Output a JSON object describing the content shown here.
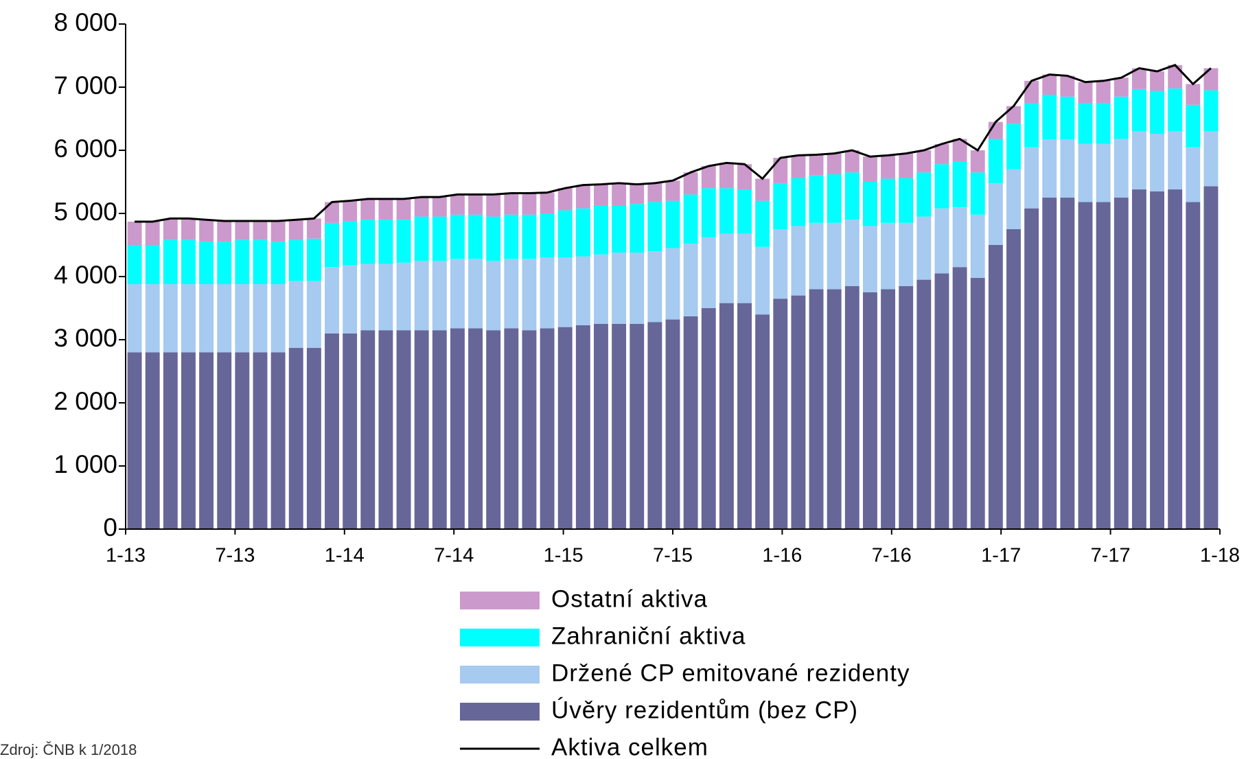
{
  "chart_data": {
    "type": "bar",
    "stacked": true,
    "categories": [
      "1-13",
      null,
      null,
      null,
      null,
      null,
      "7-13",
      null,
      null,
      null,
      null,
      null,
      "1-14",
      null,
      null,
      null,
      null,
      null,
      "7-14",
      null,
      null,
      null,
      null,
      null,
      "1-15",
      null,
      null,
      null,
      null,
      null,
      "7-15",
      null,
      null,
      null,
      null,
      null,
      "1-16",
      null,
      null,
      null,
      null,
      null,
      "7-16",
      null,
      null,
      null,
      null,
      null,
      "1-17",
      null,
      null,
      null,
      null,
      null,
      "7-17",
      null,
      null,
      null,
      null,
      null,
      "1-18"
    ],
    "series": [
      {
        "name": "Ostatní aktiva",
        "color": "#cc99cc",
        "values": [
          370,
          370,
          340,
          340,
          350,
          330,
          300,
          300,
          330,
          320,
          320,
          330,
          320,
          330,
          330,
          330,
          310,
          310,
          320,
          320,
          350,
          340,
          340,
          330,
          350,
          370,
          340,
          360,
          310,
          300,
          320,
          350,
          350,
          400,
          400,
          350,
          400,
          360,
          330,
          330,
          350,
          400,
          370,
          390,
          350,
          320,
          360,
          350,
          270,
          280,
          350,
          320,
          330,
          330,
          350,
          300,
          330,
          310,
          370,
          330,
          350
        ]
      },
      {
        "name": "Zahraniční aktiva",
        "color": "#00ffff",
        "values": [
          620,
          620,
          700,
          700,
          670,
          670,
          700,
          700,
          670,
          650,
          670,
          700,
          700,
          700,
          700,
          680,
          700,
          700,
          700,
          700,
          700,
          700,
          700,
          700,
          750,
          760,
          770,
          740,
          770,
          780,
          750,
          780,
          780,
          720,
          700,
          730,
          730,
          760,
          750,
          770,
          750,
          700,
          700,
          710,
          700,
          700,
          720,
          670,
          700,
          720,
          700,
          710,
          680,
          650,
          650,
          670,
          670,
          680,
          680,
          670,
          650
        ]
      },
      {
        "name": "Držené CP emitované rezidenty",
        "color": "#a6caf0",
        "values": [
          1080,
          1080,
          1080,
          1080,
          1080,
          1080,
          1080,
          1080,
          1080,
          1060,
          1060,
          1050,
          1080,
          1050,
          1050,
          1070,
          1100,
          1100,
          1100,
          1100,
          1100,
          1100,
          1130,
          1120,
          1100,
          1090,
          1100,
          1130,
          1130,
          1120,
          1130,
          1150,
          1120,
          1100,
          1100,
          1070,
          1100,
          1100,
          1050,
          1050,
          1050,
          1050,
          1050,
          1000,
          1000,
          1030,
          950,
          1000,
          980,
          950,
          970,
          920,
          920,
          920,
          920,
          930,
          920,
          910,
          920,
          870,
          870
        ]
      },
      {
        "name": "Úvěry rezidentům (bez CP)",
        "color": "#666699",
        "values": [
          2800,
          2800,
          2800,
          2800,
          2800,
          2800,
          2800,
          2800,
          2800,
          2870,
          2870,
          3100,
          3100,
          3150,
          3150,
          3150,
          3150,
          3150,
          3180,
          3180,
          3150,
          3180,
          3150,
          3180,
          3200,
          3230,
          3250,
          3250,
          3250,
          3280,
          3320,
          3370,
          3500,
          3580,
          3580,
          3400,
          3650,
          3700,
          3800,
          3800,
          3850,
          3750,
          3800,
          3850,
          3950,
          4050,
          4150,
          3980,
          4500,
          4750,
          5080,
          5250,
          5250,
          5180,
          5180,
          5250,
          5380,
          5350,
          5380,
          5180,
          5430
        ]
      },
      {
        "name": "Aktiva celkem",
        "color": "#000000",
        "type": "line",
        "values": [
          4870,
          4870,
          4920,
          4920,
          4900,
          4880,
          4880,
          4880,
          4880,
          4900,
          4920,
          5180,
          5200,
          5230,
          5230,
          5230,
          5260,
          5260,
          5300,
          5300,
          5300,
          5320,
          5320,
          5330,
          5400,
          5450,
          5460,
          5480,
          5460,
          5480,
          5520,
          5650,
          5750,
          5800,
          5780,
          5550,
          5880,
          5920,
          5930,
          5950,
          6000,
          5900,
          5920,
          5950,
          6000,
          6100,
          6180,
          6000,
          6450,
          6700,
          7100,
          7200,
          7180,
          7080,
          7100,
          7150,
          7300,
          7250,
          7350,
          7050,
          7300
        ]
      }
    ],
    "ylim": [
      0,
      8000
    ],
    "yticks": [
      0,
      {
        "value": 1000,
        "label": "1 000"
      },
      {
        "value": 2000,
        "label": "2 000"
      },
      {
        "value": 3000,
        "label": "3 000"
      },
      {
        "value": 4000,
        "label": "4 000"
      },
      {
        "value": 5000,
        "label": "5 000"
      },
      {
        "value": 6000,
        "label": "6 000"
      },
      {
        "value": 7000,
        "label": "7 000"
      },
      {
        "value": 8000,
        "label": "8 000"
      }
    ],
    "grid": false,
    "legend": "bottom",
    "source": "Zdroj: ČNB k 1/2018"
  }
}
